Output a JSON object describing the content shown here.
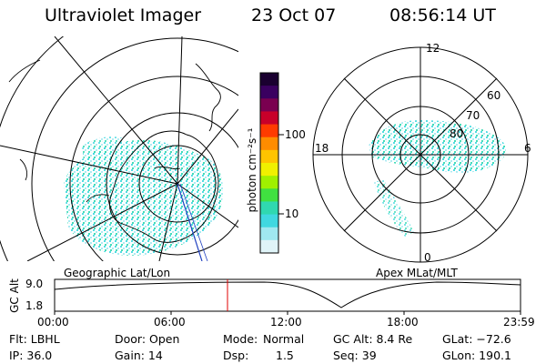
{
  "header": {
    "instrument": "Ultraviolet Imager",
    "date": "23 Oct 07",
    "time": "08:56:14 UT"
  },
  "left_panel": {
    "label": "Geographic Lat/Lon"
  },
  "right_panel": {
    "label": "Apex MLat/MLT",
    "mlt_labels": {
      "top": "12",
      "bottom": "0",
      "left": "18",
      "right": "6"
    },
    "lat_labels": [
      "60",
      "70",
      "80"
    ]
  },
  "colorbar": {
    "unit_label": "photon cm⁻²s⁻¹",
    "ticks": [
      "100",
      "10"
    ],
    "colors": [
      "#1a0030",
      "#3a0060",
      "#7a0050",
      "#c8002a",
      "#ff3b00",
      "#ff8c00",
      "#ffc400",
      "#f0f000",
      "#a0f000",
      "#40e040",
      "#30d8b0",
      "#40d8e0",
      "#a0e8f0",
      "#e0f4f8"
    ]
  },
  "altitude_plot": {
    "ylabel": "GC Alt",
    "yticks": [
      "9.0",
      "1.8"
    ],
    "xticks": [
      "00:00",
      "06:00",
      "12:00",
      "18:00",
      "23:59"
    ],
    "current_time_hours": 8.94
  },
  "info": {
    "filter": "Flt: LBHL",
    "ip": "IP: 36.0",
    "door": "Door: Open",
    "gain": "Gain: 14",
    "mode_label": "Mode:",
    "mode_value": "Normal",
    "dsp_label": "Dsp:",
    "dsp_value": "1.5",
    "gc_alt": "GC Alt: 8.4 Re",
    "seq": "Seq: 39",
    "glat": "GLat: −72.6",
    "glon": "GLon: 190.1"
  }
}
